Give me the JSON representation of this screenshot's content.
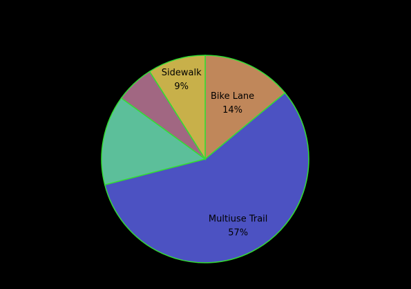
{
  "chart_data": {
    "type": "pie",
    "title": "",
    "slices": [
      {
        "label": "Bike Lane",
        "pct_label": "14%",
        "value": 14,
        "color": "#c0875a",
        "show_label": true
      },
      {
        "label": "Multiuse Trail",
        "pct_label": "57%",
        "value": 57,
        "color": "#4c52c2",
        "show_label": true
      },
      {
        "label": "",
        "pct_label": "",
        "value": 14,
        "color": "#5cbf9a",
        "show_label": false
      },
      {
        "label": "",
        "pct_label": "",
        "value": 6,
        "color": "#a16782",
        "show_label": false
      },
      {
        "label": "Sidewalk",
        "pct_label": "9%",
        "value": 9,
        "color": "#c8b04a",
        "show_label": true
      }
    ],
    "background": "#000000",
    "edge_color": "#33dd33",
    "start": "12 o'clock",
    "direction": "clockwise"
  }
}
